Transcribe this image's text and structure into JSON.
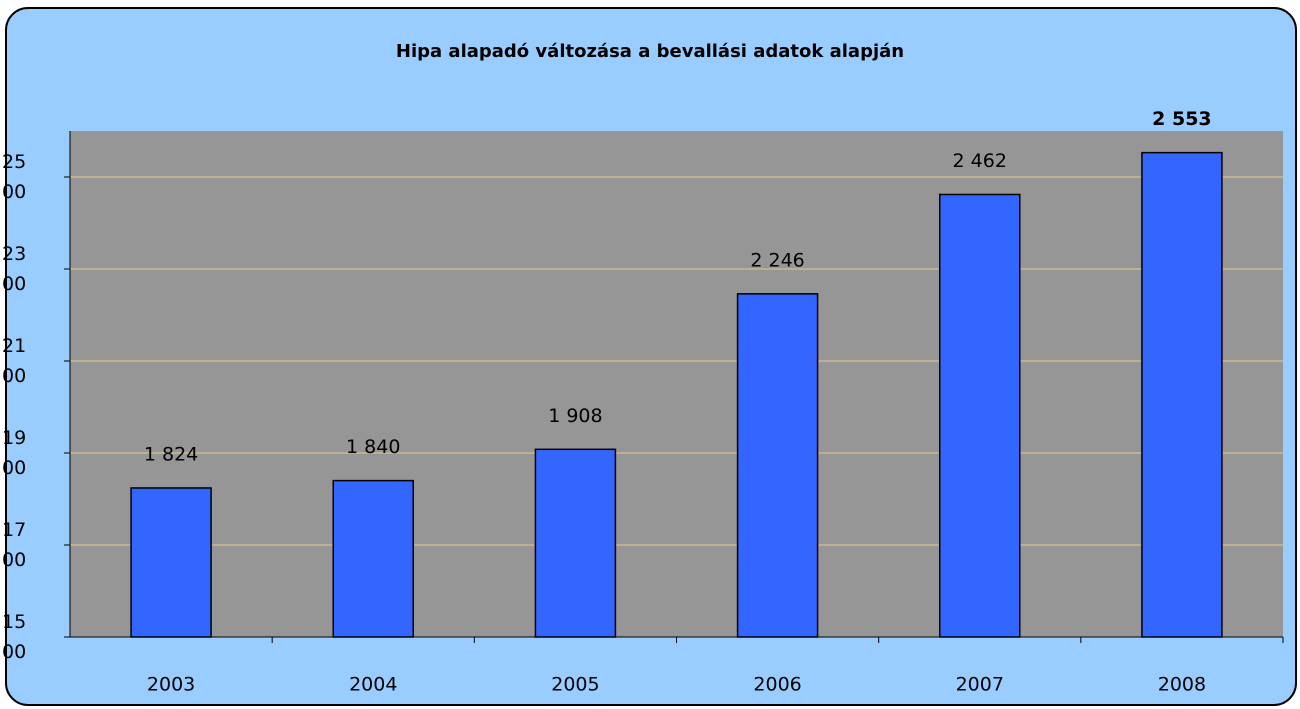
{
  "chart_data": {
    "type": "bar",
    "title": "Hipa alapadó változása a bevallási adatok alapján",
    "categories": [
      "2003",
      "2004",
      "2005",
      "2006",
      "2007",
      "2008"
    ],
    "values": [
      1824,
      1840,
      1908,
      2246,
      2462,
      2553
    ],
    "value_labels": [
      "1 824",
      "1 840",
      "1 908",
      "2 246",
      "2 462",
      "2 553"
    ],
    "color": "#3366ff",
    "ylim": [
      1500,
      2600
    ],
    "yticks": [
      1500,
      1700,
      1900,
      2100,
      2300,
      2500
    ],
    "grid": true
  }
}
